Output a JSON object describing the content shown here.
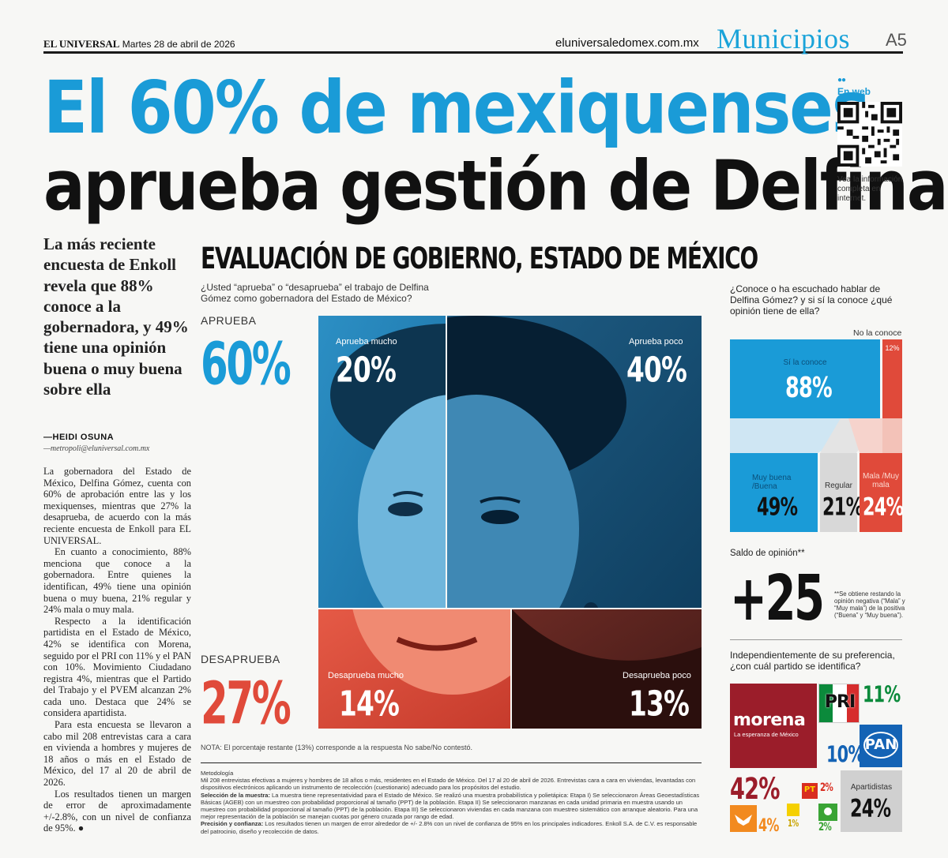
{
  "header": {
    "newspaper": "EL UNIVERSAL",
    "date": "Martes 28 de abril de 2026",
    "url": "eluniversaledomex.com.mx",
    "section": "Municipios",
    "page": "A5"
  },
  "headline": {
    "line1": "El 60% de mexiquenses",
    "line2": "aprueba gestión de Delfina"
  },
  "web_box": {
    "title": "En web",
    "text": "Vea la información completa en internet."
  },
  "dek": "La más reciente encuesta de Enkoll revela que 88% conoce a la gobernadora, y 49% tiene una opinión buena o muy buena sobre ella",
  "byline": {
    "author": "—HEIDI OSUNA",
    "email": "—metropoli@eluniversal.com.mx"
  },
  "body": [
    "La gobernadora del Estado de México, Delfina Gómez, cuenta con 60% de aprobación entre las y los mexiquenses, mientras que 27% la desaprueba, de acuerdo con la más reciente encuesta de Enkoll para EL UNIVERSAL.",
    "En cuanto a conocimiento, 88% menciona que conoce a la gobernadora. Entre quienes la identifican, 49% tiene una opinión buena o muy buena, 21% regular y 24% mala o muy mala.",
    "Respecto a la identificación partidista en el Estado de México, 42% se identifica con Morena, seguido por el PRI con 11% y el PAN con 10%. Movimiento Ciudadano registra 4%, mientras que el Partido del Trabajo y el PVEM alcanzan 2% cada uno. Destaca que 24% se considera apartidista.",
    "Para esta encuesta se llevaron a cabo mil 208 entrevistas cara a cara en vivienda a hombres y mujeres de 18 años o más en el Estado de México, del 17 al 20 de abril de 2026.",
    "Los resultados tienen un margen de error de aproximadamente +/-2.8%, con un nivel de confianza de 95%. ●"
  ],
  "infographic": {
    "title": "EVALUACIÓN DE GOBIERNO, ESTADO DE MÉXICO",
    "question": "¿Usted “aprueba” o “desaprueba” el trabajo de Delfina Gómez como gobernadora del Estado de México?",
    "approve_label": "APRUEBA",
    "approve_value": "60%",
    "disapprove_label": "DESAPRUEBA",
    "disapprove_value": "27%",
    "cells": {
      "aprueba_mucho": {
        "label": "Aprueba mucho",
        "value": "20%"
      },
      "aprueba_poco": {
        "label": "Aprueba poco",
        "value": "40%"
      },
      "desaprueba_mucho": {
        "label": "Desaprueba mucho",
        "value": "14%"
      },
      "desaprueba_poco": {
        "label": "Desaprueba poco",
        "value": "13%"
      }
    },
    "colors": {
      "blue": "#1a9bd7",
      "red": "#e04a3a",
      "dark_blue": "#0f3f60",
      "dark_red": "#5a2320"
    },
    "note": "NOTA: El porcentaje restante (13%) corresponde a la respuesta No sabe/No contestó.",
    "methodology_title": "Metodología",
    "methodology": "Mil 208 entrevistas efectivas a mujeres y hombres de 18 años o más, residentes en el Estado de México. Del 17 al 20 de abril de 2026. Entrevistas cara a cara en viviendas, levantadas con dispositivos electrónicos aplicando un instrumento de recolección (cuestionario) adecuado para los propósitos del estudio.",
    "sample_title": "Selección de la muestra:",
    "sample": "La muestra tiene representatividad para el Estado de México. Se realizó una muestra probabilística y polietápica: Etapa I) Se seleccionaron Áreas Geoestadísticas Básicas (AGEB) con un muestreo con probabilidad proporcional al tamaño (PPT) de la población. Etapa II) Se seleccionaron manzanas en cada unidad primaria en muestra usando un muestreo con probabilidad proporcional al tamaño (PPT) de la población. Etapa III) Se seleccionaron viviendas en cada manzana con muestreo sistemático con arranque aleatorio. Para una mejor representación de la población se manejan cuotas por género cruzada por rango de edad.",
    "precision_title": "Precisión y confianza:",
    "precision": "Los resultados tienen un margen de error alrededor de +/- 2.8% con un nivel de confianza de 95% en los principales indicadores. Enkoll S.A. de C.V. es responsable del patrocinio, diseño y recolección de datos."
  },
  "knowledge": {
    "question": "¿Conoce o ha escuchado hablar de Delfina Gómez? y si sí la conoce ¿qué opinión tiene de ella?",
    "no_conoce_label": "No la conoce",
    "no_conoce_value": "12%",
    "si_conoce_label": "Sí la conoce",
    "si_conoce_value": "88%",
    "buena_label": "Muy buena /Buena",
    "buena_value": "49%",
    "regular_label": "Regular",
    "regular_value": "21%",
    "mala_label": "Mala /Muy mala",
    "mala_value": "24%"
  },
  "saldo": {
    "label": "Saldo de opinión**",
    "value": "+25",
    "note": "**Se obtiene restando la opinión negativa (“Mala” y “Muy mala”) de la positiva (“Buena” y “Muy buena”)."
  },
  "parties": {
    "question": "Independientemente de su preferencia, ¿con cuál partido se identifica?",
    "morena_logo": "morena",
    "morena_tagline": "La esperanza de México",
    "morena_value": "42%",
    "pri_logo": "PRI",
    "pri_value": "11%",
    "pan_logo": "PAN",
    "pan_value": "10%",
    "apartidistas_label": "Apartidistas",
    "apartidistas_value": "24%",
    "pt_logo": "PT",
    "pt_value": "2%",
    "mc_value": "4%",
    "pvem_value": "2%",
    "other_value": "1%"
  }
}
